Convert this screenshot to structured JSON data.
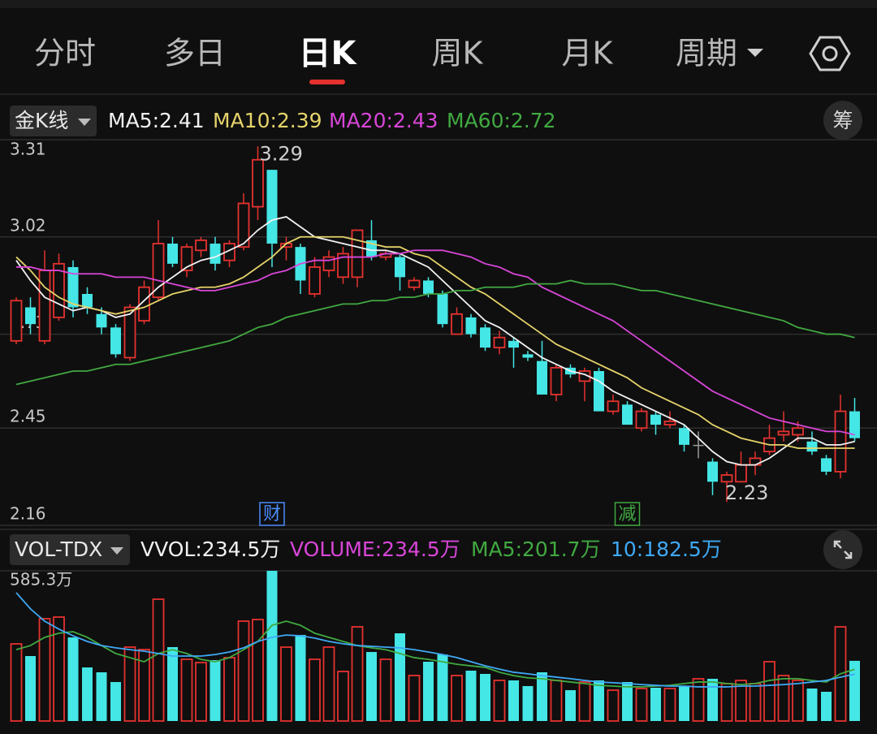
{
  "tabs": [
    "分时",
    "多日",
    "日K",
    "周K",
    "月K",
    "周期"
  ],
  "active_tab": 2,
  "price_panel": {
    "indicator": "金K线",
    "chip_button": "筹",
    "legend": [
      {
        "text": "MA5:2.41",
        "color": "#f2f2f2"
      },
      {
        "text": "MA10:2.39",
        "color": "#e6d36a"
      },
      {
        "text": "MA20:2.43",
        "color": "#d846d8"
      },
      {
        "text": "MA60:2.72",
        "color": "#41a941"
      }
    ]
  },
  "volume_panel": {
    "indicator": "VOL-TDX",
    "legend": [
      {
        "text": "VVOL:234.5万",
        "color": "#f2f2f2"
      },
      {
        "text": "VOLUME:234.5万",
        "color": "#d846d8"
      },
      {
        "text": "MA5:201.7万",
        "color": "#41a941"
      },
      {
        "text": "10:182.5万",
        "color": "#3fa9f5"
      }
    ]
  },
  "chart_data": [
    {
      "type": "candlestick",
      "up_color": "#e5322f",
      "down_color": "#45e6e6",
      "flat_color": "#9a9a9a",
      "open": [
        2.71,
        2.81,
        2.71,
        2.78,
        2.93,
        2.85,
        2.79,
        2.75,
        2.66,
        2.77,
        2.84,
        3.0,
        2.92,
        2.98,
        3.0,
        2.95,
        2.99,
        3.11,
        3.22,
        2.99,
        2.99,
        2.85,
        2.92,
        2.9,
        2.9,
        3.01,
        2.96,
        2.96,
        2.87,
        2.89,
        2.85,
        2.73,
        2.78,
        2.75,
        2.69,
        2.71,
        2.67,
        2.65,
        2.55,
        2.63,
        2.59,
        2.62,
        2.5,
        2.52,
        2.45,
        2.49,
        2.46,
        2.45,
        2.4,
        2.35,
        2.29,
        2.29,
        2.34,
        2.38,
        2.43,
        2.43,
        2.41,
        2.36,
        2.32,
        2.5
      ],
      "close": [
        2.83,
        2.76,
        2.92,
        2.94,
        2.81,
        2.81,
        2.75,
        2.67,
        2.81,
        2.87,
        3.0,
        2.94,
        2.99,
        3.01,
        2.94,
        3.0,
        3.12,
        3.25,
        3.0,
        3.0,
        2.89,
        2.93,
        2.96,
        2.97,
        3.04,
        2.96,
        2.97,
        2.9,
        2.89,
        2.85,
        2.76,
        2.79,
        2.73,
        2.69,
        2.72,
        2.69,
        2.66,
        2.55,
        2.63,
        2.61,
        2.62,
        2.5,
        2.53,
        2.46,
        2.5,
        2.46,
        2.47,
        2.4,
        2.4,
        2.29,
        2.31,
        2.34,
        2.36,
        2.42,
        2.44,
        2.45,
        2.38,
        2.32,
        2.5,
        2.42
      ],
      "high": [
        2.84,
        2.84,
        2.98,
        2.97,
        2.95,
        2.87,
        2.81,
        2.76,
        2.82,
        2.89,
        3.07,
        3.02,
        3.0,
        3.02,
        3.02,
        3.01,
        3.15,
        3.29,
        3.22,
        3.02,
        3.0,
        2.96,
        2.98,
        2.99,
        3.04,
        3.07,
        2.98,
        2.97,
        2.9,
        2.9,
        2.86,
        2.81,
        2.79,
        2.76,
        2.74,
        2.72,
        2.68,
        2.71,
        2.64,
        2.64,
        2.63,
        2.63,
        2.55,
        2.53,
        2.51,
        2.5,
        2.5,
        2.46,
        2.44,
        2.36,
        2.32,
        2.38,
        2.38,
        2.46,
        2.5,
        2.47,
        2.44,
        2.37,
        2.55,
        2.54
      ],
      "low": [
        2.7,
        2.73,
        2.7,
        2.77,
        2.78,
        2.79,
        2.73,
        2.66,
        2.65,
        2.76,
        2.83,
        2.93,
        2.9,
        2.96,
        2.92,
        2.93,
        2.98,
        3.07,
        2.93,
        2.95,
        2.85,
        2.84,
        2.9,
        2.88,
        2.87,
        2.95,
        2.95,
        2.86,
        2.86,
        2.84,
        2.75,
        2.73,
        2.72,
        2.68,
        2.67,
        2.63,
        2.65,
        2.55,
        2.53,
        2.6,
        2.53,
        2.5,
        2.49,
        2.46,
        2.44,
        2.43,
        2.45,
        2.38,
        2.36,
        2.25,
        2.23,
        2.29,
        2.31,
        2.37,
        2.41,
        2.41,
        2.37,
        2.31,
        2.3,
        2.41
      ],
      "lines": [
        {
          "color": "#f2f2f2",
          "values": [
            2.95,
            2.89,
            2.84,
            2.82,
            2.8,
            2.81,
            2.8,
            2.78,
            2.79,
            2.83,
            2.87,
            2.9,
            2.93,
            2.95,
            2.96,
            2.98,
            3.0,
            3.04,
            3.07,
            3.08,
            3.05,
            3.02,
            3.01,
            3.0,
            2.99,
            2.98,
            2.98,
            2.97,
            2.95,
            2.93,
            2.89,
            2.85,
            2.81,
            2.77,
            2.75,
            2.72,
            2.69,
            2.66,
            2.64,
            2.62,
            2.61,
            2.59,
            2.56,
            2.54,
            2.52,
            2.5,
            2.48,
            2.46,
            2.42,
            2.38,
            2.35,
            2.34,
            2.34,
            2.36,
            2.39,
            2.42,
            2.42,
            2.4,
            2.4,
            2.41
          ]
        },
        {
          "color": "#e6d36a",
          "values": [
            2.96,
            2.92,
            2.87,
            2.84,
            2.82,
            2.81,
            2.8,
            2.79,
            2.8,
            2.81,
            2.83,
            2.85,
            2.86,
            2.87,
            2.87,
            2.88,
            2.9,
            2.93,
            2.96,
            3.0,
            3.02,
            3.02,
            3.02,
            3.02,
            3.01,
            3.0,
            2.99,
            2.99,
            2.97,
            2.96,
            2.93,
            2.9,
            2.87,
            2.85,
            2.82,
            2.79,
            2.76,
            2.73,
            2.7,
            2.68,
            2.66,
            2.64,
            2.62,
            2.6,
            2.57,
            2.55,
            2.53,
            2.51,
            2.49,
            2.46,
            2.44,
            2.42,
            2.41,
            2.4,
            2.4,
            2.39,
            2.39,
            2.39,
            2.39,
            2.39
          ]
        },
        {
          "color": "#d846d8",
          "values": [
            2.93,
            2.93,
            2.92,
            2.92,
            2.91,
            2.91,
            2.91,
            2.9,
            2.9,
            2.9,
            2.89,
            2.88,
            2.87,
            2.86,
            2.86,
            2.87,
            2.88,
            2.89,
            2.91,
            2.92,
            2.94,
            2.95,
            2.95,
            2.96,
            2.96,
            2.96,
            2.97,
            2.97,
            2.98,
            2.98,
            2.98,
            2.97,
            2.96,
            2.94,
            2.93,
            2.91,
            2.9,
            2.87,
            2.85,
            2.83,
            2.81,
            2.79,
            2.77,
            2.74,
            2.71,
            2.68,
            2.65,
            2.62,
            2.59,
            2.56,
            2.54,
            2.52,
            2.5,
            2.48,
            2.47,
            2.46,
            2.45,
            2.44,
            2.44,
            2.43
          ]
        },
        {
          "color": "#41a941",
          "values": [
            2.58,
            2.59,
            2.6,
            2.61,
            2.62,
            2.62,
            2.63,
            2.64,
            2.64,
            2.65,
            2.66,
            2.67,
            2.68,
            2.69,
            2.7,
            2.71,
            2.73,
            2.75,
            2.76,
            2.78,
            2.79,
            2.8,
            2.81,
            2.82,
            2.82,
            2.83,
            2.83,
            2.84,
            2.84,
            2.85,
            2.85,
            2.86,
            2.86,
            2.87,
            2.87,
            2.87,
            2.88,
            2.88,
            2.88,
            2.89,
            2.88,
            2.88,
            2.88,
            2.87,
            2.86,
            2.86,
            2.85,
            2.84,
            2.83,
            2.82,
            2.81,
            2.8,
            2.79,
            2.78,
            2.77,
            2.75,
            2.74,
            2.73,
            2.73,
            2.72
          ]
        }
      ],
      "ylim": [
        2.16,
        3.31
      ],
      "yticks": [
        3.31,
        3.02,
        2.73,
        2.45,
        2.16
      ],
      "grid": true,
      "max_label": {
        "label": "3.29",
        "value": 3.29
      },
      "min_label": {
        "label": "2.23",
        "value": 2.23
      },
      "events": [
        {
          "label": "财",
          "index": 18,
          "color": "#4a8cff"
        },
        {
          "label": "减",
          "index": 43,
          "color": "#41a941"
        }
      ]
    },
    {
      "type": "bar",
      "values": [
        300.6,
        253.1,
        398.7,
        405.0,
        325.9,
        208.8,
        189.8,
        151.9,
        287.9,
        278.4,
        474.6,
        287.9,
        240.5,
        227.8,
        237.3,
        246.8,
        389.2,
        395.5,
        585.3,
        287.9,
        335.4,
        240.5,
        287.9,
        193.0,
        367.0,
        268.9,
        240.5,
        341.7,
        177.2,
        231.0,
        259.4,
        177.2,
        196.2,
        183.5,
        158.2,
        158.2,
        136.1,
        189.8,
        158.2,
        120.2,
        151.9,
        158.2,
        120.2,
        151.9,
        126.6,
        129.7,
        126.6,
        136.1,
        164.5,
        164.5,
        145.5,
        158.2,
        145.5,
        231.0,
        177.2,
        158.2,
        126.6,
        113.9,
        367.0,
        234.5
      ],
      "lines": [
        {
          "color": "#41a941",
          "values": [
            278,
            294,
            326,
            342,
            348,
            326,
            294,
            263,
            247,
            231,
            263,
            278,
            263,
            240,
            231,
            247,
            278,
            310,
            373,
            389,
            373,
            342,
            326,
            310,
            294,
            285,
            278,
            263,
            247,
            240,
            231,
            221,
            215,
            209,
            190,
            177,
            168,
            165,
            158,
            152,
            146,
            139,
            136,
            133,
            133,
            136,
            139,
            146,
            152,
            152,
            146,
            142,
            146,
            158,
            165,
            165,
            158,
            152,
            184,
            201.7
          ]
        },
        {
          "color": "#3fa9f5",
          "values": [
            500,
            437,
            389,
            358,
            332,
            310,
            294,
            285,
            278,
            272,
            263,
            253,
            253,
            253,
            259,
            269,
            285,
            310,
            326,
            335,
            332,
            323,
            310,
            301,
            294,
            291,
            288,
            285,
            278,
            269,
            259,
            247,
            231,
            215,
            202,
            190,
            184,
            177,
            171,
            165,
            158,
            152,
            149,
            146,
            142,
            139,
            136,
            136,
            133,
            133,
            133,
            136,
            136,
            139,
            142,
            146,
            152,
            158,
            171,
            182.5
          ]
        }
      ],
      "ylim": [
        0,
        585.3
      ],
      "yticks": [
        {
          "value": 585.3,
          "label": "585.3万"
        }
      ]
    }
  ]
}
